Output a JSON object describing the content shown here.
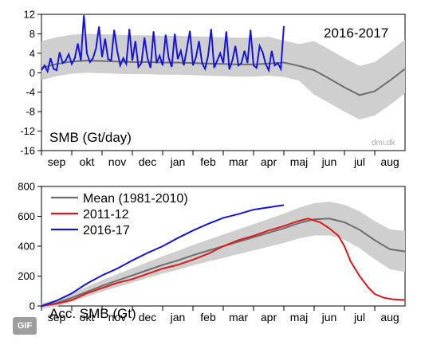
{
  "badge": "GIF",
  "months": [
    "sep",
    "okt",
    "nov",
    "dec",
    "jan",
    "feb",
    "mar",
    "apr",
    "maj",
    "jun",
    "jul",
    "aug"
  ],
  "colors": {
    "mean": "#6e6e6e",
    "band": "#cfcfcf",
    "y2012": "#e01818",
    "y2017": "#1515dd"
  },
  "chart_data": [
    {
      "type": "line",
      "title": "2016-2017",
      "ylabel": "SMB (Gt/day)",
      "credit": "dmi.dk",
      "x_categories": [
        "sep",
        "okt",
        "nov",
        "dec",
        "jan",
        "feb",
        "mar",
        "apr",
        "maj",
        "jun",
        "jul",
        "aug"
      ],
      "ylim": [
        -16,
        12
      ],
      "yticks": [
        12,
        8,
        4,
        0,
        -4,
        -8,
        -12,
        -16
      ],
      "grid": false,
      "series": [
        {
          "name": "Mean (1981-2010)",
          "color": "#6e6e6e",
          "x": [
            0,
            0.5,
            1,
            1.5,
            2,
            2.5,
            3,
            3.5,
            4,
            4.5,
            5,
            5.5,
            6,
            6.5,
            7,
            7.5,
            8,
            8.5,
            9,
            9.5,
            10,
            10.5,
            11,
            11.5,
            12
          ],
          "y": [
            1.0,
            1.8,
            2.3,
            2.5,
            2.4,
            2.3,
            2.2,
            2.2,
            2.1,
            2.1,
            2.0,
            1.9,
            1.8,
            1.7,
            1.7,
            1.9,
            2.1,
            1.4,
            0.5,
            -1.2,
            -3.0,
            -4.6,
            -3.8,
            -1.6,
            0.8
          ]
        },
        {
          "name": "2016-17",
          "color": "#1515dd",
          "x": [
            0,
            0.1,
            0.2,
            0.3,
            0.4,
            0.5,
            0.6,
            0.7,
            0.8,
            0.9,
            1.0,
            1.1,
            1.2,
            1.3,
            1.4,
            1.5,
            1.6,
            1.7,
            1.8,
            1.9,
            2.0,
            2.1,
            2.2,
            2.3,
            2.4,
            2.5,
            2.6,
            2.7,
            2.8,
            2.9,
            3.0,
            3.1,
            3.2,
            3.3,
            3.4,
            3.5,
            3.6,
            3.7,
            3.8,
            3.9,
            4.0,
            4.1,
            4.2,
            4.3,
            4.4,
            4.5,
            4.6,
            4.7,
            4.8,
            4.9,
            5.0,
            5.1,
            5.2,
            5.3,
            5.4,
            5.5,
            5.6,
            5.7,
            5.8,
            5.9,
            6.0,
            6.1,
            6.2,
            6.3,
            6.4,
            6.5,
            6.6,
            6.7,
            6.8,
            6.9,
            7.0,
            7.1,
            7.2,
            7.3,
            7.4,
            7.5,
            7.6,
            7.7,
            7.8,
            7.9,
            8.0
          ],
          "y": [
            0.5,
            1.5,
            0.3,
            3.0,
            0.8,
            0.5,
            4.2,
            2.0,
            2.5,
            3.8,
            1.8,
            3.0,
            6.0,
            2.5,
            11.8,
            4.0,
            2.2,
            3.0,
            5.0,
            9.5,
            3.2,
            7.0,
            2.8,
            2.5,
            8.8,
            4.5,
            1.5,
            3.0,
            1.8,
            9.0,
            2.5,
            6.5,
            1.2,
            2.0,
            7.2,
            3.0,
            1.0,
            8.5,
            2.0,
            3.5,
            1.5,
            7.8,
            3.0,
            1.2,
            8.0,
            2.8,
            4.5,
            1.5,
            5.0,
            8.6,
            1.5,
            3.2,
            6.5,
            2.0,
            0.8,
            3.5,
            9.0,
            1.0,
            2.5,
            4.0,
            2.0,
            8.5,
            0.7,
            2.5,
            5.5,
            1.5,
            2.0,
            4.5,
            2.0,
            8.8,
            1.5,
            1.0,
            5.5,
            4.2,
            1.8,
            0.5,
            4.5,
            1.5,
            2.0,
            0.8,
            9.6
          ]
        }
      ]
    },
    {
      "type": "line",
      "ylabel": "Acc. SMB (Gt)",
      "x_categories": [
        "sep",
        "okt",
        "nov",
        "dec",
        "jan",
        "feb",
        "mar",
        "apr",
        "maj",
        "jun",
        "jul",
        "aug"
      ],
      "ylim": [
        0,
        800
      ],
      "yticks": [
        800,
        600,
        400,
        200,
        0
      ],
      "grid": false,
      "legend_position": "top-left",
      "series": [
        {
          "name": "Mean (1981-2010)",
          "color": "#6e6e6e",
          "x": [
            0,
            0.5,
            1,
            1.5,
            2,
            2.5,
            3,
            3.5,
            4,
            4.5,
            5,
            5.5,
            6,
            6.5,
            7,
            7.5,
            8,
            8.5,
            9,
            9.5,
            10,
            10.5,
            11,
            11.5,
            12
          ],
          "y": [
            0,
            20,
            55,
            95,
            135,
            170,
            205,
            240,
            275,
            305,
            340,
            370,
            400,
            430,
            460,
            490,
            520,
            555,
            580,
            585,
            560,
            510,
            440,
            380,
            365
          ]
        },
        {
          "name": "2011-12",
          "color": "#e01818",
          "x": [
            0,
            0.5,
            1,
            1.5,
            2,
            2.5,
            3,
            3.5,
            4,
            4.5,
            5,
            5.5,
            6,
            6.5,
            7,
            7.5,
            8,
            8.5,
            8.8,
            9.2,
            9.5,
            9.8,
            10,
            10.2,
            10.5,
            10.8,
            11,
            11.3,
            11.6,
            12
          ],
          "y": [
            0,
            15,
            40,
            85,
            120,
            155,
            180,
            215,
            250,
            275,
            310,
            350,
            400,
            440,
            470,
            505,
            535,
            570,
            585,
            560,
            520,
            470,
            400,
            300,
            200,
            120,
            80,
            55,
            45,
            40
          ]
        },
        {
          "name": "2016-17",
          "color": "#1515dd",
          "x": [
            0,
            0.5,
            1,
            1.5,
            2,
            2.5,
            3,
            3.5,
            4,
            4.5,
            5,
            5.5,
            6,
            6.5,
            7,
            7.5,
            8
          ],
          "y": [
            0,
            35,
            85,
            150,
            205,
            250,
            305,
            355,
            400,
            455,
            505,
            550,
            590,
            615,
            645,
            660,
            675
          ]
        }
      ]
    }
  ]
}
